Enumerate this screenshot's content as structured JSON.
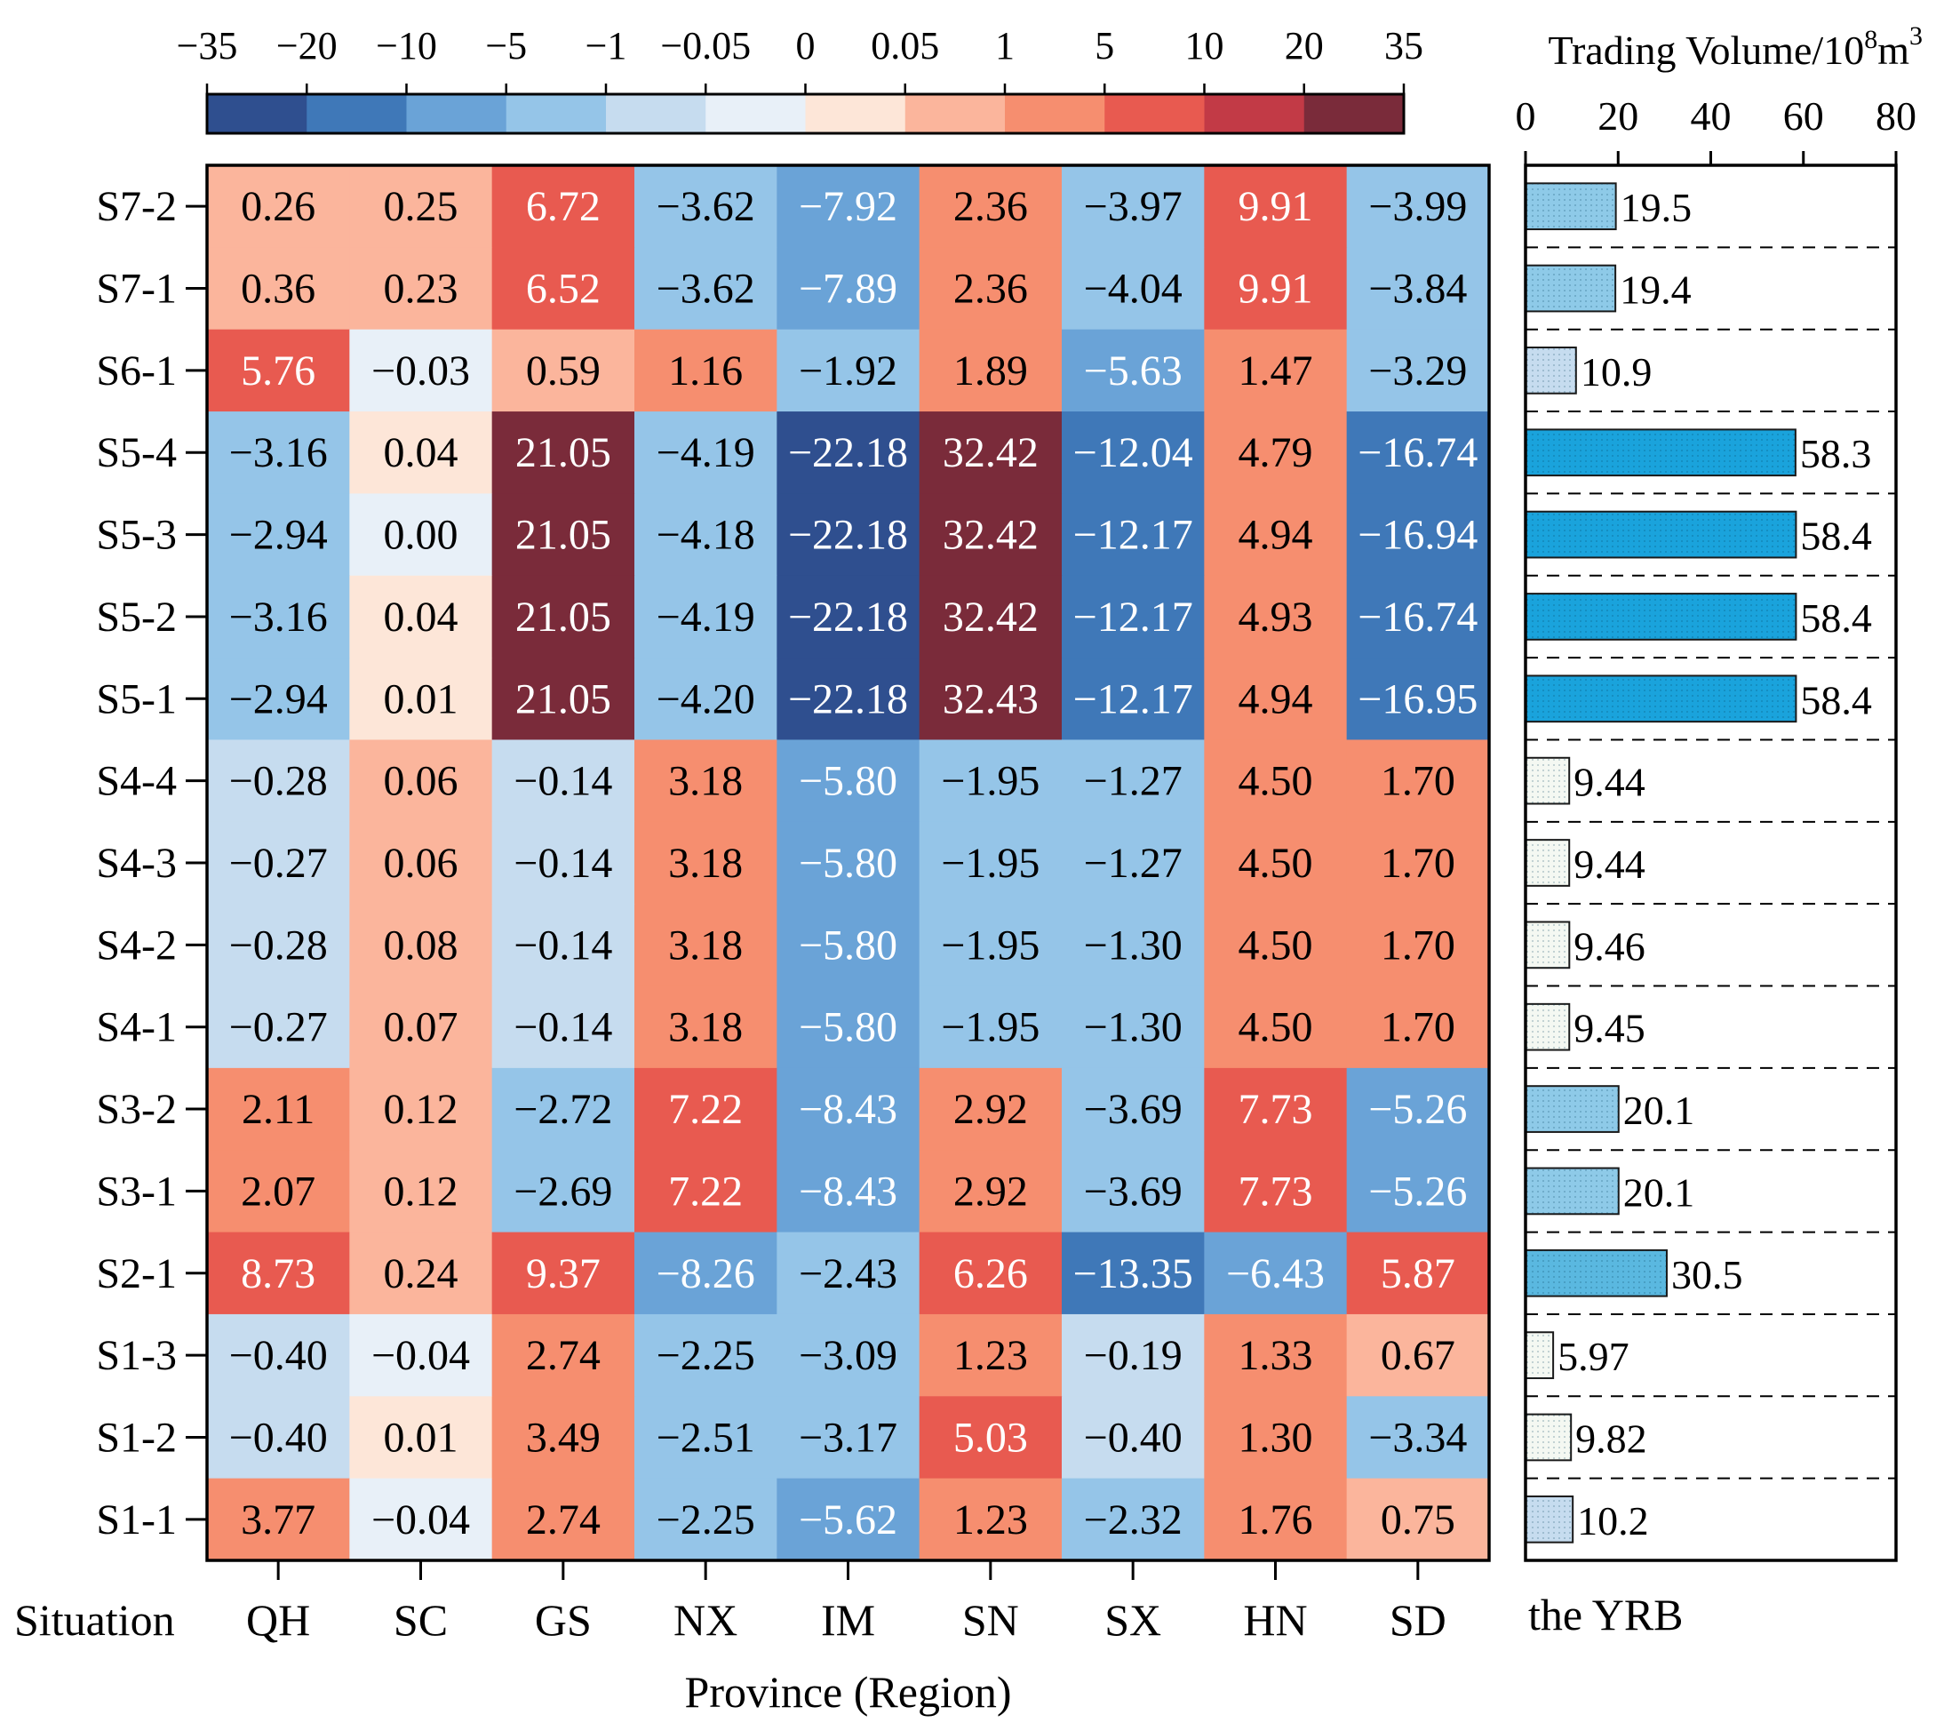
{
  "chart_data": [
    {
      "type": "heatmap",
      "xlabel": "Province (Region)",
      "ylabel": "Situation",
      "columns": [
        "QH",
        "SC",
        "GS",
        "NX",
        "IM",
        "SN",
        "SX",
        "HN",
        "SD"
      ],
      "rows": [
        "S7-2",
        "S7-1",
        "S6-1",
        "S5-4",
        "S5-3",
        "S5-2",
        "S5-1",
        "S4-4",
        "S4-3",
        "S4-2",
        "S4-1",
        "S3-2",
        "S3-1",
        "S2-1",
        "S1-3",
        "S1-2",
        "S1-1"
      ],
      "values": [
        [
          "0.26",
          "0.25",
          "6.72",
          "−3.62",
          "−7.92",
          "2.36",
          "−3.97",
          "9.91",
          "−3.99"
        ],
        [
          "0.36",
          "0.23",
          "6.52",
          "−3.62",
          "−7.89",
          "2.36",
          "−4.04",
          "9.91",
          "−3.84"
        ],
        [
          "5.76",
          "−0.03",
          "0.59",
          "1.16",
          "−1.92",
          "1.89",
          "−5.63",
          "1.47",
          "−3.29"
        ],
        [
          "−3.16",
          "0.04",
          "21.05",
          "−4.19",
          "−22.18",
          "32.42",
          "−12.04",
          "4.79",
          "−16.74"
        ],
        [
          "−2.94",
          "0.00",
          "21.05",
          "−4.18",
          "−22.18",
          "32.42",
          "−12.17",
          "4.94",
          "−16.94"
        ],
        [
          "−3.16",
          "0.04",
          "21.05",
          "−4.19",
          "−22.18",
          "32.42",
          "−12.17",
          "4.93",
          "−16.74"
        ],
        [
          "−2.94",
          "0.01",
          "21.05",
          "−4.20",
          "−22.18",
          "32.43",
          "−12.17",
          "4.94",
          "−16.95"
        ],
        [
          "−0.28",
          "0.06",
          "−0.14",
          "3.18",
          "−5.80",
          "−1.95",
          "−1.27",
          "4.50",
          "1.70"
        ],
        [
          "−0.27",
          "0.06",
          "−0.14",
          "3.18",
          "−5.80",
          "−1.95",
          "−1.27",
          "4.50",
          "1.70"
        ],
        [
          "−0.28",
          "0.08",
          "−0.14",
          "3.18",
          "−5.80",
          "−1.95",
          "−1.30",
          "4.50",
          "1.70"
        ],
        [
          "−0.27",
          "0.07",
          "−0.14",
          "3.18",
          "−5.80",
          "−1.95",
          "−1.30",
          "4.50",
          "1.70"
        ],
        [
          "2.11",
          "0.12",
          "−2.72",
          "7.22",
          "−8.43",
          "2.92",
          "−3.69",
          "7.73",
          "−5.26"
        ],
        [
          "2.07",
          "0.12",
          "−2.69",
          "7.22",
          "−8.43",
          "2.92",
          "−3.69",
          "7.73",
          "−5.26"
        ],
        [
          "8.73",
          "0.24",
          "9.37",
          "−8.26",
          "−2.43",
          "6.26",
          "−13.35",
          "−6.43",
          "5.87"
        ],
        [
          "−0.40",
          "−0.04",
          "2.74",
          "−2.25",
          "−3.09",
          "1.23",
          "−0.19",
          "1.33",
          "0.67"
        ],
        [
          "−0.40",
          "0.01",
          "3.49",
          "−2.51",
          "−3.17",
          "5.03",
          "−0.40",
          "1.30",
          "−3.34"
        ],
        [
          "3.77",
          "−0.04",
          "2.74",
          "−2.25",
          "−5.62",
          "1.23",
          "−2.32",
          "1.76",
          "0.75"
        ]
      ],
      "colorbar": {
        "boundaries": [
          -35,
          -20,
          -10,
          -5,
          -1,
          -0.05,
          0,
          0.05,
          1,
          5,
          10,
          20,
          35
        ],
        "tick_labels": [
          "−35",
          "−20",
          "−10",
          "−5",
          "−1",
          "−0.05",
          "0",
          "0.05",
          "1",
          "5",
          "10",
          "20",
          "35"
        ],
        "colors": [
          "#2f4f8f",
          "#3f78b8",
          "#6aa3d7",
          "#95c5e8",
          "#c6dcef",
          "#e8f0f8",
          "#fde6d8",
          "#fbb59c",
          "#f68e6f",
          "#e85a50",
          "#c23a46",
          "#7a2b3a"
        ]
      }
    },
    {
      "type": "bar",
      "orientation": "horizontal",
      "title": "Trading Volume/10⁸m³",
      "title_main": "Trading Volume/10",
      "title_exp1": "8",
      "title_mid": "m",
      "title_exp2": "3",
      "xlabel": "the YRB",
      "xlim": [
        0,
        80
      ],
      "xticks": [
        0,
        20,
        40,
        60,
        80
      ],
      "xtick_labels": [
        "0",
        "20",
        "40",
        "60",
        "80"
      ],
      "categories": [
        "S7-2",
        "S7-1",
        "S6-1",
        "S5-4",
        "S5-3",
        "S5-2",
        "S5-1",
        "S4-4",
        "S4-3",
        "S4-2",
        "S4-1",
        "S3-2",
        "S3-1",
        "S2-1",
        "S1-3",
        "S1-2",
        "S1-1"
      ],
      "values": [
        19.5,
        19.4,
        10.9,
        58.3,
        58.4,
        58.4,
        58.4,
        9.44,
        9.44,
        9.46,
        9.45,
        20.1,
        20.1,
        30.5,
        5.97,
        9.82,
        10.2
      ],
      "labels": [
        "19.5",
        "19.4",
        "10.9",
        "58.3",
        "58.4",
        "58.4",
        "58.4",
        "9.44",
        "9.44",
        "9.46",
        "9.45",
        "20.1",
        "20.1",
        "30.5",
        "5.97",
        "9.82",
        "10.2"
      ],
      "colors": [
        "#8ecae8",
        "#8ecae8",
        "#c6dcef",
        "#1aa3dc",
        "#1aa3dc",
        "#1aa3dc",
        "#1aa3dc",
        "#f4f8f2",
        "#f4f8f2",
        "#f4f8f2",
        "#f4f8f2",
        "#8ecae8",
        "#8ecae8",
        "#5ab8e0",
        "#f4f8f2",
        "#f4f8f2",
        "#c6dcef"
      ]
    }
  ]
}
